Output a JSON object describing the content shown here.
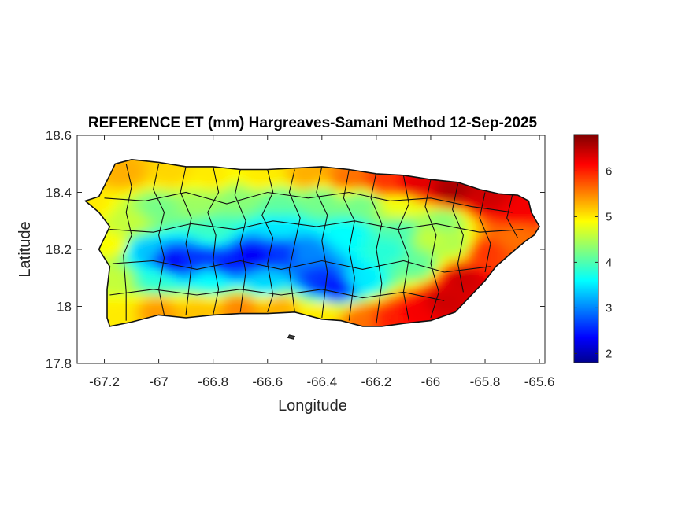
{
  "chart_data": {
    "type": "heatmap",
    "title": "REFERENCE ET (mm) Hargreaves-Samani Method  12-Sep-2025",
    "xlabel": "Longitude",
    "ylabel": "Latitude",
    "xlim": [
      -67.3,
      -65.58
    ],
    "ylim": [
      17.8,
      18.6
    ],
    "xticks": [
      -67.2,
      -67,
      -66.8,
      -66.6,
      -66.4,
      -66.2,
      -66,
      -65.8,
      -65.6
    ],
    "xtick_labels": [
      "-67.2",
      "-67",
      "-66.8",
      "-66.6",
      "-66.4",
      "-66.2",
      "-66",
      "-65.8",
      "-65.6"
    ],
    "yticks": [
      17.8,
      18,
      18.2,
      18.4,
      18.6
    ],
    "ytick_labels": [
      "17.8",
      "18",
      "18.2",
      "18.4",
      "18.6"
    ],
    "colorbar": {
      "colormap": "jet",
      "range": [
        1.8,
        6.8
      ],
      "ticks": [
        2,
        3,
        4,
        5,
        6
      ],
      "tick_labels": [
        "2",
        "3",
        "4",
        "5",
        "6"
      ]
    },
    "region": "Puerto Rico",
    "pattern": {
      "interior_mountain_band": {
        "lon": [
          -67.05,
          -66.3
        ],
        "lat": [
          18.08,
          18.22
        ],
        "et_mm": [
          1.9,
          3.0
        ]
      },
      "west_north_coast": {
        "et_mm": [
          4.5,
          5.5
        ]
      },
      "northeast_coast": {
        "lon": [
          -66.1,
          -65.62
        ],
        "lat": [
          18.3,
          18.45
        ],
        "et_mm": [
          6.0,
          6.8
        ]
      },
      "southeast_coast": {
        "lon": [
          -66.05,
          -65.75
        ],
        "lat": [
          17.95,
          18.25
        ],
        "et_mm": [
          5.8,
          6.6
        ]
      },
      "south_coast": {
        "et_mm": [
          5.0,
          6.0
        ]
      }
    }
  }
}
